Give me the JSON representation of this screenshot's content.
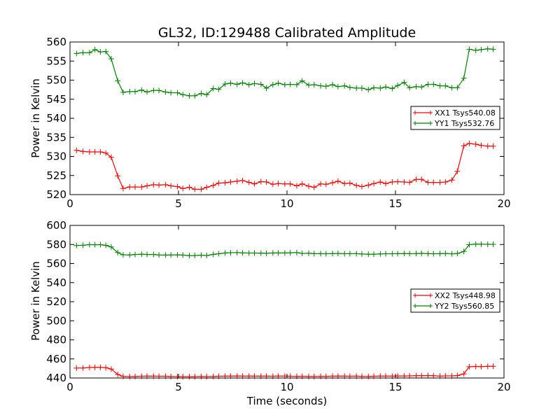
{
  "chart_data": [
    {
      "type": "line",
      "title": "GL32, ID:129488 Calibrated Amplitude",
      "xlabel": "",
      "ylabel": "Power in Kelvin",
      "xlim": [
        0,
        20
      ],
      "ylim": [
        520,
        560
      ],
      "xticks": [
        0,
        5,
        10,
        15,
        20
      ],
      "yticks": [
        520,
        525,
        530,
        535,
        540,
        545,
        550,
        555,
        560
      ],
      "grid": false,
      "legend_position": "center-right",
      "x": [
        0.3,
        0.6,
        0.9,
        1.15,
        1.4,
        1.65,
        1.9,
        2.2,
        2.45,
        2.75,
        3.0,
        3.3,
        3.55,
        3.85,
        4.1,
        4.4,
        4.65,
        4.95,
        5.2,
        5.5,
        5.75,
        6.05,
        6.3,
        6.6,
        6.85,
        7.15,
        7.4,
        7.7,
        7.95,
        8.25,
        8.5,
        8.8,
        9.05,
        9.35,
        9.6,
        9.9,
        10.15,
        10.45,
        10.7,
        11.0,
        11.25,
        11.55,
        11.8,
        12.1,
        12.35,
        12.65,
        12.9,
        13.2,
        13.45,
        13.75,
        14.0,
        14.3,
        14.55,
        14.85,
        15.1,
        15.4,
        15.65,
        15.95,
        16.2,
        16.5,
        16.75,
        17.05,
        17.3,
        17.6,
        17.85,
        18.15,
        18.4,
        18.7,
        18.95,
        19.25,
        19.5
      ],
      "series": [
        {
          "name": "XX1 Tsys540.08",
          "color": "#ff0000",
          "values": [
            531.6,
            531.3,
            531.2,
            531.2,
            531.2,
            530.9,
            529.8,
            524.9,
            521.6,
            522.0,
            522.0,
            522.0,
            522.3,
            522.6,
            522.5,
            522.6,
            522.3,
            522.1,
            521.6,
            521.9,
            521.4,
            521.4,
            521.9,
            522.4,
            523.0,
            523.1,
            523.3,
            523.5,
            523.7,
            523.2,
            522.8,
            523.4,
            523.3,
            522.7,
            522.9,
            522.8,
            522.8,
            522.3,
            522.8,
            522.2,
            521.9,
            522.8,
            522.7,
            523.1,
            523.5,
            522.9,
            523.0,
            522.4,
            522.1,
            522.5,
            522.9,
            523.3,
            522.9,
            523.3,
            523.4,
            523.3,
            523.2,
            524.0,
            524.0,
            523.2,
            523.2,
            523.2,
            523.3,
            523.8,
            526.1,
            532.8,
            533.4,
            533.2,
            532.9,
            532.7,
            532.7
          ]
        },
        {
          "name": "YY1 Tsys532.76",
          "color": "#008000",
          "values": [
            557.0,
            557.2,
            557.2,
            558.0,
            557.4,
            557.5,
            555.6,
            549.8,
            546.8,
            547.0,
            547.0,
            547.4,
            546.9,
            547.3,
            547.3,
            546.9,
            546.7,
            546.7,
            546.2,
            545.9,
            545.9,
            546.5,
            546.2,
            547.8,
            547.6,
            549.0,
            549.2,
            548.9,
            549.3,
            548.8,
            549.1,
            548.9,
            547.9,
            548.8,
            549.2,
            548.8,
            548.9,
            548.8,
            549.8,
            548.7,
            548.8,
            548.5,
            548.4,
            548.8,
            548.3,
            548.5,
            548.1,
            547.9,
            547.9,
            547.5,
            548.0,
            547.9,
            548.2,
            547.8,
            548.6,
            549.4,
            548.0,
            548.3,
            548.2,
            548.9,
            548.9,
            548.5,
            548.5,
            548.0,
            548.0,
            550.5,
            558.1,
            557.8,
            558.0,
            558.2,
            558.1
          ]
        }
      ]
    },
    {
      "type": "line",
      "title": "",
      "xlabel": "Time (seconds)",
      "ylabel": "Power in Kelvin",
      "xlim": [
        0,
        20
      ],
      "ylim": [
        440,
        600
      ],
      "xticks": [
        0,
        5,
        10,
        15,
        20
      ],
      "yticks": [
        440,
        460,
        480,
        500,
        520,
        540,
        560,
        580,
        600
      ],
      "grid": false,
      "legend_position": "center-right",
      "x": [
        0.3,
        0.6,
        0.9,
        1.15,
        1.4,
        1.65,
        1.9,
        2.2,
        2.45,
        2.75,
        3.0,
        3.3,
        3.55,
        3.85,
        4.1,
        4.4,
        4.65,
        4.95,
        5.2,
        5.5,
        5.75,
        6.05,
        6.3,
        6.6,
        6.85,
        7.15,
        7.4,
        7.7,
        7.95,
        8.25,
        8.5,
        8.8,
        9.05,
        9.35,
        9.6,
        9.9,
        10.15,
        10.45,
        10.7,
        11.0,
        11.25,
        11.55,
        11.8,
        12.1,
        12.35,
        12.65,
        12.9,
        13.2,
        13.45,
        13.75,
        14.0,
        14.3,
        14.55,
        14.85,
        15.1,
        15.4,
        15.65,
        15.95,
        16.2,
        16.5,
        16.75,
        17.05,
        17.3,
        17.6,
        17.85,
        18.15,
        18.4,
        18.7,
        18.95,
        19.25,
        19.5
      ],
      "series": [
        {
          "name": "XX2 Tsys448.98",
          "color": "#ff0000",
          "values": [
            450.4,
            450.5,
            451.0,
            451.1,
            451.1,
            450.8,
            449.4,
            443.7,
            441.7,
            441.5,
            441.6,
            441.8,
            441.9,
            441.9,
            441.8,
            441.8,
            441.6,
            441.5,
            441.5,
            441.4,
            441.5,
            441.6,
            441.5,
            441.6,
            441.8,
            441.9,
            442.0,
            442.1,
            442.0,
            442.0,
            441.9,
            441.9,
            441.9,
            441.8,
            442.0,
            442.0,
            441.8,
            441.7,
            441.8,
            441.6,
            441.6,
            441.7,
            441.7,
            441.9,
            442.0,
            441.9,
            441.8,
            441.9,
            441.7,
            441.6,
            441.8,
            442.0,
            442.0,
            441.9,
            442.1,
            442.1,
            442.2,
            442.4,
            442.4,
            442.6,
            442.4,
            442.0,
            442.2,
            442.2,
            442.6,
            444.3,
            451.8,
            452.1,
            451.9,
            452.2,
            452.3
          ]
        },
        {
          "name": "YY2 Tsys560.85",
          "color": "#008000",
          "values": [
            578.9,
            579.2,
            579.8,
            579.7,
            579.8,
            579.1,
            577.4,
            571.5,
            569.2,
            569.0,
            569.5,
            569.8,
            569.5,
            569.5,
            569.0,
            568.9,
            569.0,
            569.1,
            568.9,
            568.3,
            568.4,
            568.8,
            568.4,
            569.6,
            570.3,
            571.1,
            571.4,
            571.5,
            571.2,
            571.0,
            571.0,
            570.9,
            570.7,
            571.1,
            571.1,
            571.1,
            571.3,
            571.5,
            570.6,
            570.8,
            570.4,
            570.4,
            570.3,
            570.5,
            570.6,
            570.3,
            570.4,
            570.4,
            570.0,
            569.8,
            569.8,
            570.1,
            570.3,
            570.3,
            570.4,
            570.5,
            570.4,
            570.5,
            570.7,
            570.4,
            570.3,
            570.4,
            570.6,
            570.2,
            570.6,
            572.7,
            579.8,
            580.4,
            580.3,
            580.2,
            580.2
          ]
        }
      ]
    }
  ]
}
